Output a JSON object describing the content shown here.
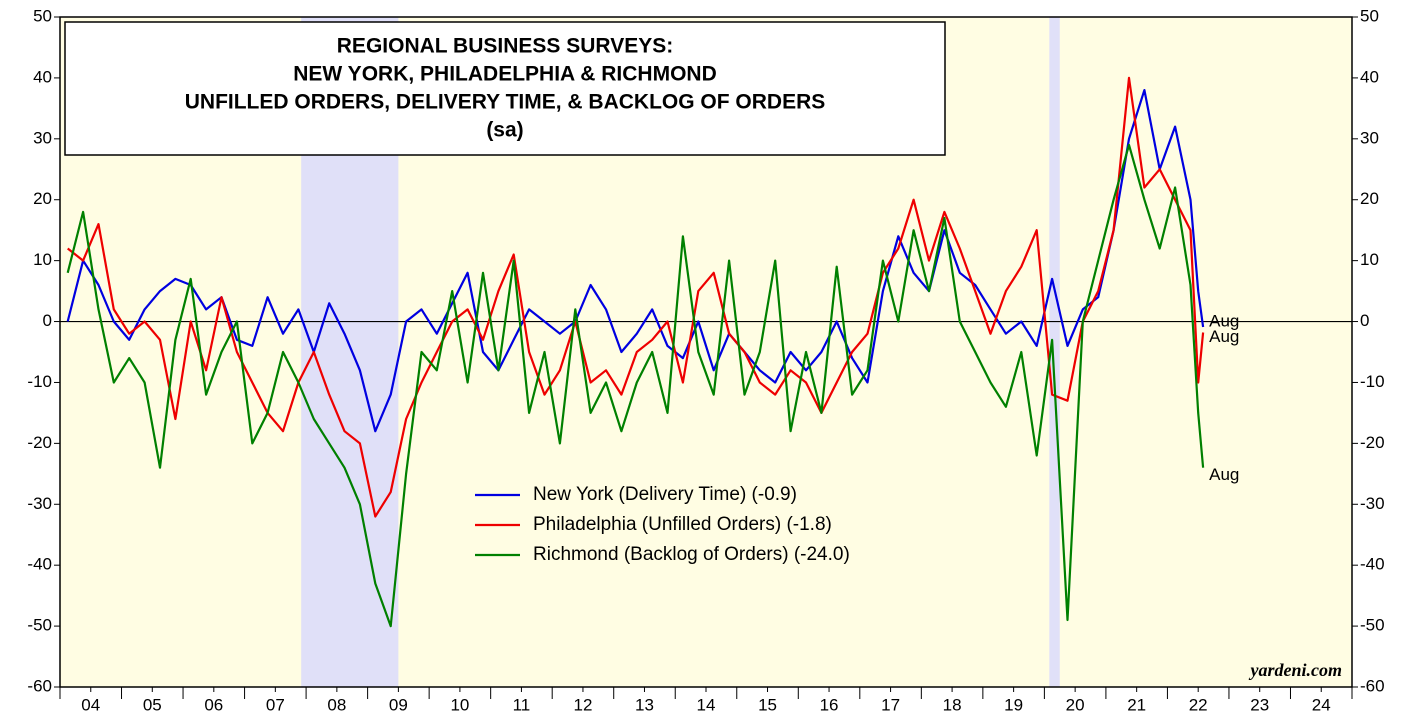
{
  "chart_data": {
    "type": "line",
    "title_lines": [
      "REGIONAL BUSINESS SURVEYS:",
      "NEW YORK, PHILADELPHIA & RICHMOND",
      "UNFILLED ORDERS, DELIVERY TIME, & BACKLOG OF ORDERS",
      "(sa)"
    ],
    "source": "yardeni.com",
    "background": "#fffde3",
    "recession_color": "#e0e0f8",
    "recessions": [
      [
        2007.92,
        2009.5
      ],
      [
        2020.08,
        2020.25
      ]
    ],
    "xlim": [
      2004,
      2025
    ],
    "xticks": [
      {
        "value": 2004.5,
        "label": "04"
      },
      {
        "value": 2005.5,
        "label": "05"
      },
      {
        "value": 2006.5,
        "label": "06"
      },
      {
        "value": 2007.5,
        "label": "07"
      },
      {
        "value": 2008.5,
        "label": "08"
      },
      {
        "value": 2009.5,
        "label": "09"
      },
      {
        "value": 2010.5,
        "label": "10"
      },
      {
        "value": 2011.5,
        "label": "11"
      },
      {
        "value": 2012.5,
        "label": "12"
      },
      {
        "value": 2013.5,
        "label": "13"
      },
      {
        "value": 2014.5,
        "label": "14"
      },
      {
        "value": 2015.5,
        "label": "15"
      },
      {
        "value": 2016.5,
        "label": "16"
      },
      {
        "value": 2017.5,
        "label": "17"
      },
      {
        "value": 2018.5,
        "label": "18"
      },
      {
        "value": 2019.5,
        "label": "19"
      },
      {
        "value": 2020.5,
        "label": "20"
      },
      {
        "value": 2021.5,
        "label": "21"
      },
      {
        "value": 2022.5,
        "label": "22"
      },
      {
        "value": 2023.5,
        "label": "23"
      },
      {
        "value": 2024.5,
        "label": "24"
      }
    ],
    "ylim": [
      -60,
      50
    ],
    "yticks": [
      -60,
      -50,
      -40,
      -30,
      -20,
      -10,
      0,
      10,
      20,
      30,
      40,
      50
    ],
    "x": [
      2004.125,
      2004.375,
      2004.625,
      2004.875,
      2005.125,
      2005.375,
      2005.625,
      2005.875,
      2006.125,
      2006.375,
      2006.625,
      2006.875,
      2007.125,
      2007.375,
      2007.625,
      2007.875,
      2008.125,
      2008.375,
      2008.625,
      2008.875,
      2009.125,
      2009.375,
      2009.625,
      2009.875,
      2010.125,
      2010.375,
      2010.625,
      2010.875,
      2011.125,
      2011.375,
      2011.625,
      2011.875,
      2012.125,
      2012.375,
      2012.625,
      2012.875,
      2013.125,
      2013.375,
      2013.625,
      2013.875,
      2014.125,
      2014.375,
      2014.625,
      2014.875,
      2015.125,
      2015.375,
      2015.625,
      2015.875,
      2016.125,
      2016.375,
      2016.625,
      2016.875,
      2017.125,
      2017.375,
      2017.625,
      2017.875,
      2018.125,
      2018.375,
      2018.625,
      2018.875,
      2019.125,
      2019.375,
      2019.625,
      2019.875,
      2020.125,
      2020.375,
      2020.625,
      2020.875,
      2021.125,
      2021.375,
      2021.625,
      2021.875,
      2022.125,
      2022.375,
      2022.5,
      2022.58
    ],
    "series": [
      {
        "name": "New York (Delivery Time) (-0.9)",
        "color": "#0000e0",
        "end_label": "Aug",
        "values": [
          0,
          10,
          6,
          0,
          -3,
          2,
          5,
          7,
          6,
          2,
          4,
          -3,
          -4,
          4,
          -2,
          2,
          -5,
          3,
          -2,
          -8,
          -18,
          -12,
          0,
          2,
          -2,
          3,
          8,
          -5,
          -8,
          -3,
          2,
          0,
          -2,
          0,
          6,
          2,
          -5,
          -2,
          2,
          -4,
          -6,
          0,
          -8,
          -2,
          -5,
          -8,
          -10,
          -5,
          -8,
          -5,
          0,
          -6,
          -10,
          5,
          14,
          8,
          5,
          15,
          8,
          6,
          2,
          -2,
          0,
          -4,
          7,
          -4,
          2,
          4,
          15,
          30,
          38,
          25,
          32,
          20,
          5,
          -0.9
        ]
      },
      {
        "name": "Philadelphia (Unfilled Orders) (-1.8)",
        "color": "#ee0000",
        "end_label": "Aug",
        "values": [
          12,
          10,
          16,
          2,
          -2,
          0,
          -3,
          -16,
          0,
          -8,
          4,
          -5,
          -10,
          -15,
          -18,
          -10,
          -5,
          -12,
          -18,
          -20,
          -32,
          -28,
          -16,
          -10,
          -5,
          0,
          2,
          -3,
          5,
          11,
          -5,
          -12,
          -8,
          0,
          -10,
          -8,
          -12,
          -5,
          -3,
          0,
          -10,
          5,
          8,
          -2,
          -5,
          -10,
          -12,
          -8,
          -10,
          -15,
          -10,
          -5,
          -2,
          8,
          12,
          20,
          10,
          18,
          12,
          5,
          -2,
          5,
          9,
          15,
          -12,
          -13,
          0,
          5,
          15,
          40,
          22,
          25,
          20,
          15,
          -10,
          -1.8
        ]
      },
      {
        "name": "Richmond (Backlog of Orders) (-24.0)",
        "color": "#008000",
        "end_label": "Aug",
        "values": [
          8,
          18,
          2,
          -10,
          -6,
          -10,
          -24,
          -3,
          7,
          -12,
          -5,
          0,
          -20,
          -15,
          -5,
          -10,
          -16,
          -20,
          -24,
          -30,
          -43,
          -50,
          -25,
          -5,
          -8,
          5,
          -10,
          8,
          -8,
          10,
          -15,
          -5,
          -20,
          2,
          -15,
          -10,
          -18,
          -10,
          -5,
          -15,
          14,
          -5,
          -12,
          10,
          -12,
          -5,
          10,
          -18,
          -5,
          -15,
          9,
          -12,
          -8,
          10,
          0,
          15,
          5,
          17,
          0,
          -5,
          -10,
          -14,
          -5,
          -22,
          -3,
          -49,
          0,
          10,
          20,
          29,
          20,
          12,
          22,
          6,
          -15,
          -24
        ]
      }
    ]
  }
}
